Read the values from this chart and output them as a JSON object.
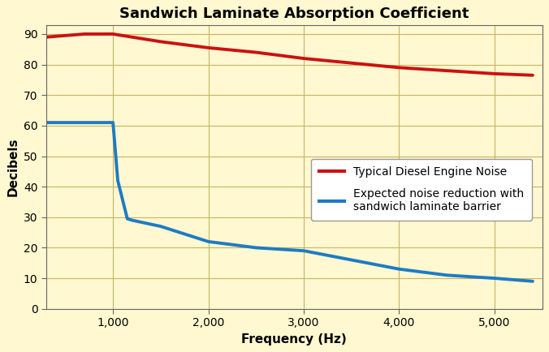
{
  "title": "Sandwich Laminate Absorption Coefficient",
  "xlabel": "Frequency (Hz)",
  "ylabel": "Decibels",
  "background_color": "#FFF8D0",
  "grid_color": "#C8B464",
  "red_line": {
    "x": [
      300,
      700,
      1000,
      1500,
      2000,
      2500,
      3000,
      3500,
      4000,
      4500,
      5000,
      5400
    ],
    "y": [
      89,
      90,
      90,
      87.5,
      85.5,
      84,
      82,
      80.5,
      79,
      78,
      77,
      76.5
    ],
    "color": "#CC1111",
    "linewidth": 2.8,
    "label": "Typical Diesel Engine Noise"
  },
  "blue_line": {
    "x": [
      300,
      600,
      900,
      1000,
      1050,
      1150,
      1200,
      1500,
      2000,
      2500,
      3000,
      3500,
      4000,
      4500,
      5000,
      5400
    ],
    "y": [
      61,
      61,
      61,
      61,
      42,
      29.5,
      29,
      27,
      22,
      20,
      19,
      16,
      13,
      11,
      10,
      9
    ],
    "color": "#1E7BC4",
    "linewidth": 2.8,
    "label_line1": "Expected noise reduction with",
    "label_line2": "sandwich laminate barrier"
  },
  "xlim": [
    300,
    5500
  ],
  "ylim": [
    0,
    93
  ],
  "yticks": [
    0,
    10,
    20,
    30,
    40,
    50,
    60,
    70,
    80,
    90
  ],
  "xticks": [
    1000,
    2000,
    3000,
    4000,
    5000
  ],
  "xtick_labels": [
    "1,000",
    "2,000",
    "3,000",
    "4,000",
    "5,000"
  ],
  "title_fontsize": 13,
  "axis_label_fontsize": 11,
  "tick_fontsize": 10,
  "legend_fontsize": 10
}
